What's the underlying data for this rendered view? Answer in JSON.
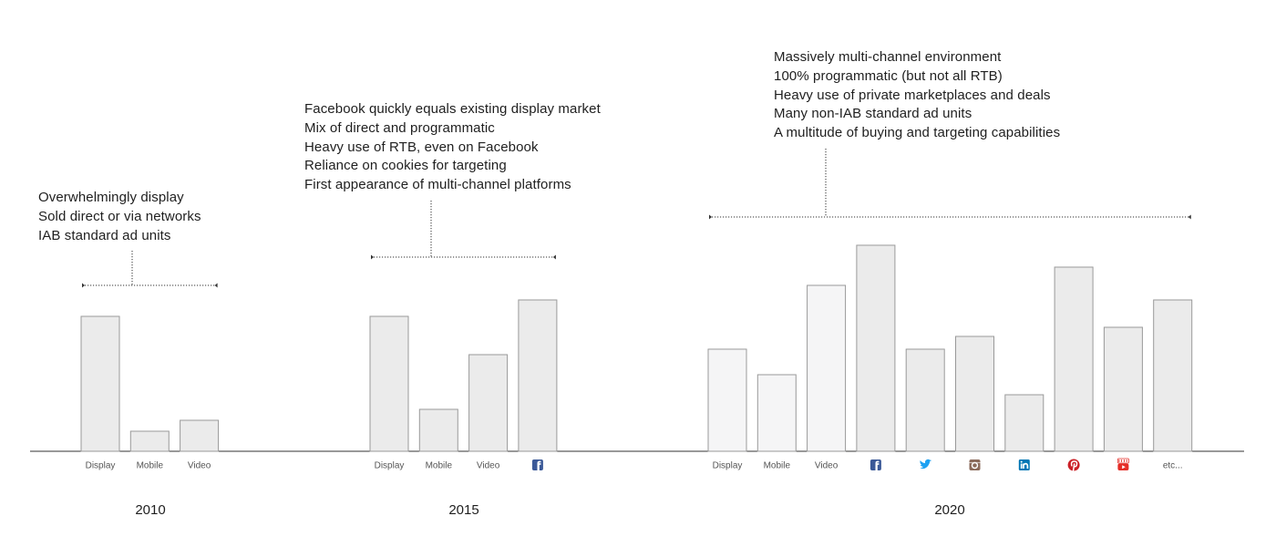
{
  "chart_data": [
    {
      "type": "bar",
      "title": "2010",
      "categories": [
        "Display",
        "Mobile",
        "Video"
      ],
      "values": [
        74,
        11,
        17
      ],
      "annotations": [
        "Overwhelmingly display",
        "Sold direct or via networks",
        "IAB standard ad units"
      ]
    },
    {
      "type": "bar",
      "title": "2015",
      "categories": [
        "Display",
        "Mobile",
        "Video",
        "facebook-icon"
      ],
      "values": [
        74,
        23,
        53,
        83
      ],
      "annotations": [
        "Facebook quickly equals existing display market",
        "Mix of direct and programmatic",
        "Heavy use of RTB, even on Facebook",
        "Reliance on cookies for targeting",
        "First appearance of multi-channel platforms"
      ]
    },
    {
      "type": "bar",
      "title": "2020",
      "categories": [
        "Display",
        "Mobile",
        "Video",
        "facebook-icon",
        "twitter-icon",
        "instagram-icon",
        "linkedin-icon",
        "pinterest-icon",
        "youtube-icon",
        "etc..."
      ],
      "values": [
        56,
        42,
        91,
        113,
        56,
        63,
        31,
        101,
        68,
        83
      ],
      "annotations": [
        "Massively multi-channel environment",
        "100% programmatic (but not all RTB)",
        "Heavy use of private marketplaces and deals",
        "Many non-IAB standard ad units",
        "A multitude of buying and targeting capabilities"
      ]
    }
  ],
  "colors": {
    "bar_fill": "#ebebeb",
    "bar_fill_light": "#f5f5f6",
    "bar_stroke": "#999999",
    "baseline": "#333333",
    "facebook": "#3b5998",
    "twitter": "#1da1f2",
    "instagram": "#8a6a5a",
    "linkedin": "#0077b5",
    "pinterest": "#cb2027",
    "youtube": "#e52d27"
  }
}
